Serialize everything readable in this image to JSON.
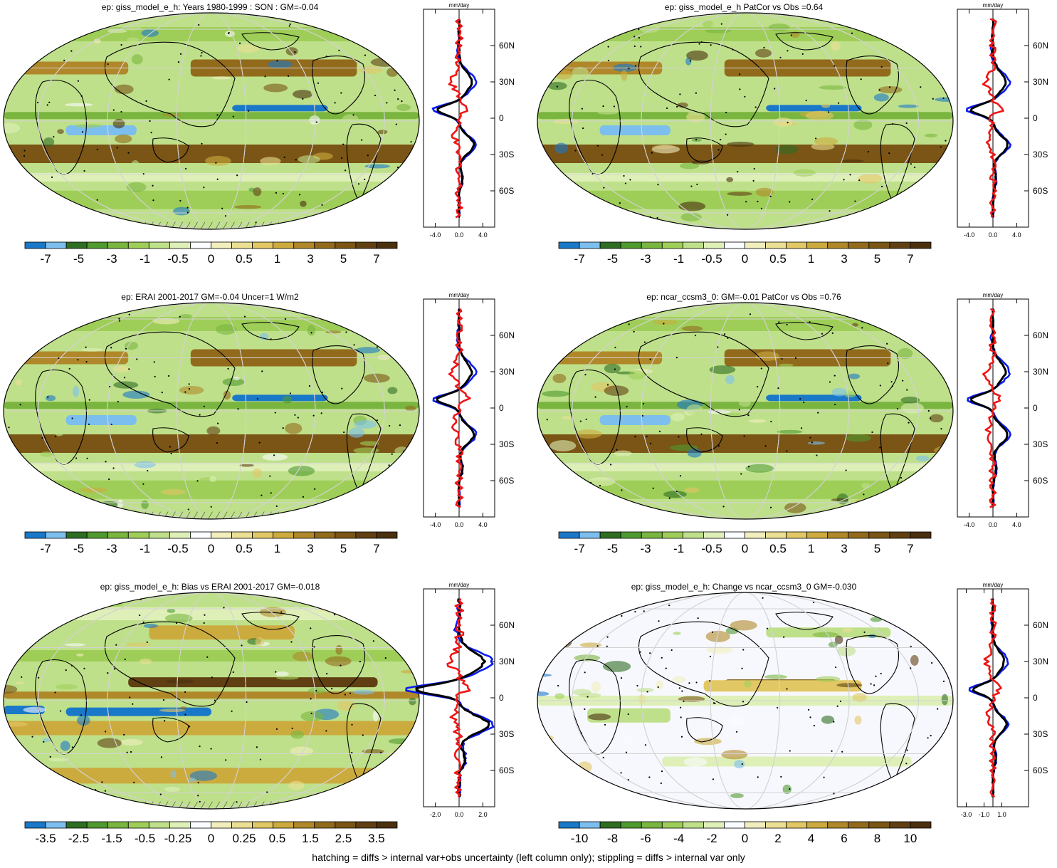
{
  "palette": [
    "#1a78c8",
    "#7cbfee",
    "#2f6d23",
    "#4f9a2e",
    "#7ab540",
    "#9ece58",
    "#bfe08a",
    "#def0b8",
    "#fafcff",
    "#f2efbe",
    "#ebdf93",
    "#e2c765",
    "#ccab3e",
    "#b0882a",
    "#926a1c",
    "#7a5515",
    "#604013",
    "#4a300e"
  ],
  "line_colors": {
    "obs": "#0a1cf0",
    "model": "#000000",
    "diff": "#f01414"
  },
  "zonal_units": "mm/day",
  "lat_labels": [
    "60N",
    "30N",
    "0",
    "30S",
    "60S"
  ],
  "footer_text": "hatching = diffs > internal var+obs uncertainty (left column only); stippling = diffs > internal var only",
  "panels": [
    {
      "id": "p1",
      "title": "ep: giss_model_e_h: Years 1980-1999 : SON : GM=-0.04",
      "colorbar_labels": [
        "-7",
        "-5",
        "-3",
        "-1",
        "-0.5",
        "0",
        "0.5",
        "1",
        "3",
        "5",
        "7"
      ],
      "zonal_ticks": [
        "-4.0",
        "0.0",
        "4.0"
      ],
      "zonal_tick_values": [
        -4,
        0,
        4
      ],
      "zonal_xlim": [
        -6,
        6
      ],
      "map_style": "mean",
      "hatching": true
    },
    {
      "id": "p2",
      "title": "ep: giss_model_e_h PatCor vs Obs =0.64",
      "colorbar_labels": [
        "-7",
        "-5",
        "-3",
        "-1",
        "-0.5",
        "0",
        "0.5",
        "1",
        "3",
        "5",
        "7"
      ],
      "zonal_ticks": [
        "-4.0",
        "0.0",
        "4.0"
      ],
      "zonal_tick_values": [
        -4,
        0,
        4
      ],
      "zonal_xlim": [
        -6,
        6
      ],
      "map_style": "mean",
      "hatching": false
    },
    {
      "id": "p3",
      "title": "ep: ERAI 2001-2017 GM=-0.04 Uncer=1 W/m2",
      "colorbar_labels": [
        "-7",
        "-5",
        "-3",
        "-1",
        "-0.5",
        "0",
        "0.5",
        "1",
        "3",
        "5",
        "7"
      ],
      "zonal_ticks": [
        "-4.0",
        "0.0",
        "4.0"
      ],
      "zonal_tick_values": [
        -4,
        0,
        4
      ],
      "zonal_xlim": [
        -6,
        6
      ],
      "map_style": "mean",
      "hatching": true
    },
    {
      "id": "p4",
      "title": "ep: ncar_ccsm3_0: GM=-0.01 PatCor vs Obs =0.76",
      "colorbar_labels": [
        "-7",
        "-5",
        "-3",
        "-1",
        "-0.5",
        "0",
        "0.5",
        "1",
        "3",
        "5",
        "7"
      ],
      "zonal_ticks": [
        "-4.0",
        "0.0",
        "4.0"
      ],
      "zonal_tick_values": [
        -4,
        0,
        4
      ],
      "zonal_xlim": [
        -6,
        6
      ],
      "map_style": "mean",
      "hatching": false
    },
    {
      "id": "p5",
      "title": "ep: giss_model_e_h: Bias vs ERAI 2001-2017  GM=-0.018",
      "colorbar_labels": [
        "-3.5",
        "-2.5",
        "-1.5",
        "-0.5",
        "-0.25",
        "0",
        "0.25",
        "0.5",
        "1.5",
        "2.5",
        "3.5"
      ],
      "zonal_ticks": [
        "-2.0",
        "0.0",
        "2.0"
      ],
      "zonal_tick_values": [
        -2,
        0,
        2
      ],
      "zonal_xlim": [
        -3,
        3
      ],
      "map_style": "bias",
      "hatching": true
    },
    {
      "id": "p6",
      "title": "ep: giss_model_e_h: Change vs ncar_ccsm3_0 GM=-0.030",
      "colorbar_labels": [
        "-10",
        "-8",
        "-6",
        "-4",
        "-2",
        "0",
        "2",
        "4",
        "6",
        "8",
        "10"
      ],
      "zonal_ticks": [
        "-3.0",
        "-1.0",
        "1.0"
      ],
      "zonal_tick_values": [
        -3,
        -1,
        1
      ],
      "zonal_xlim": [
        -4,
        4
      ],
      "map_style": "change",
      "hatching": false
    }
  ]
}
